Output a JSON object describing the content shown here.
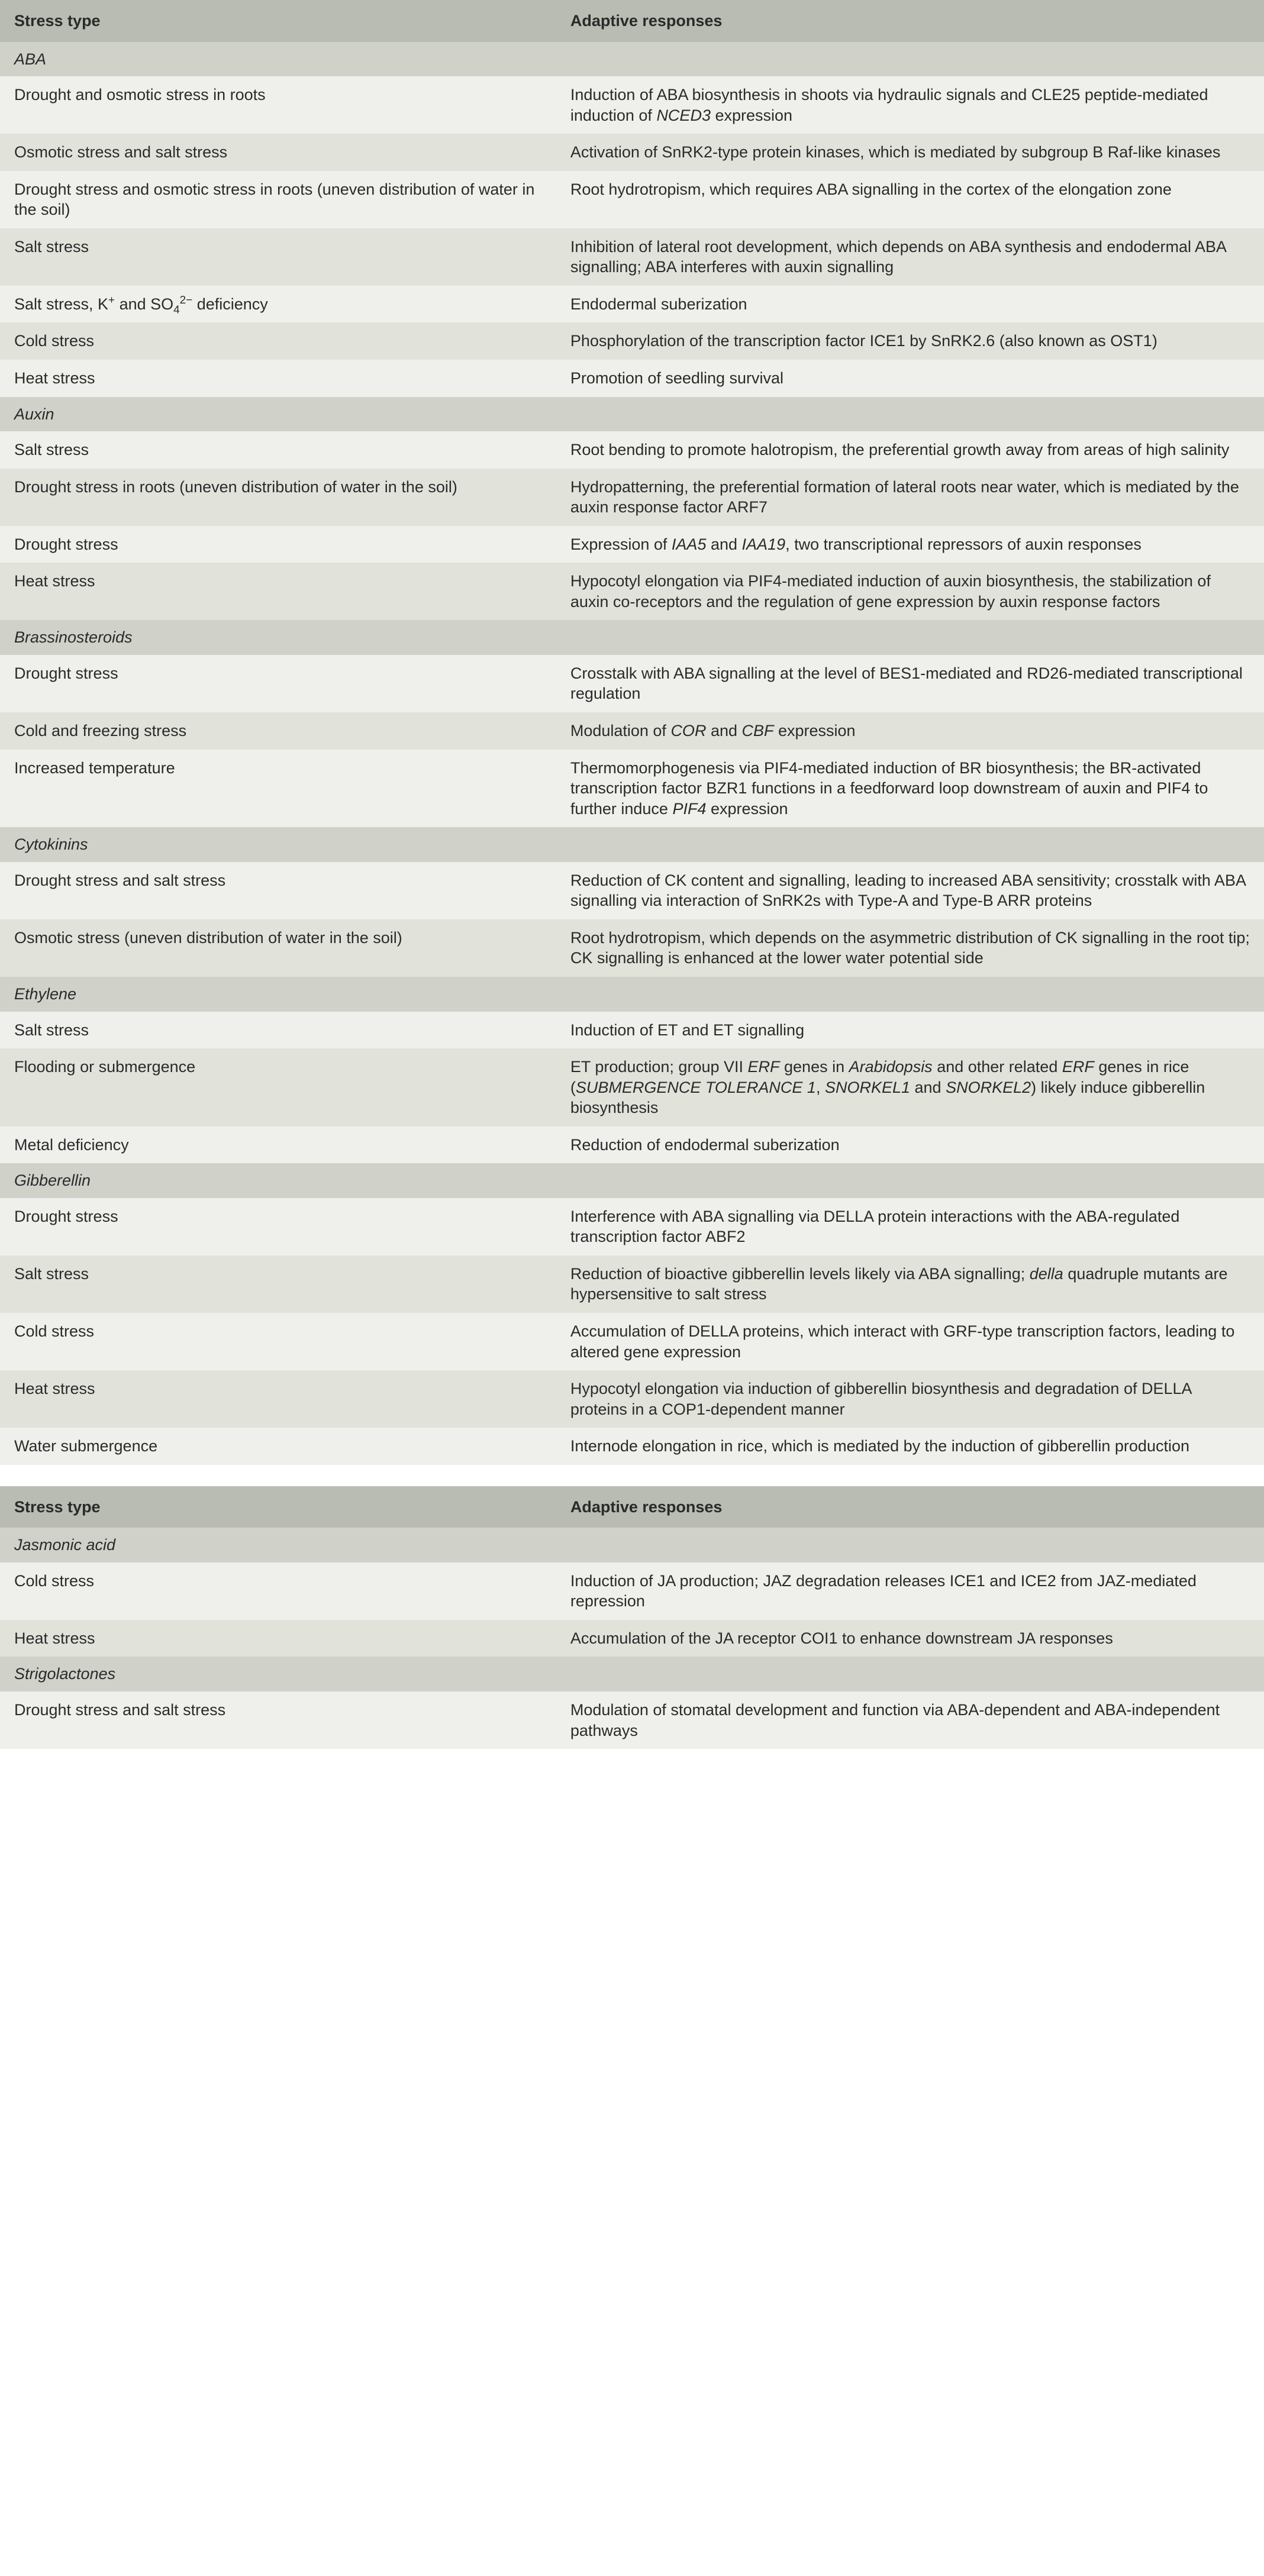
{
  "columns": {
    "stress": "Stress type",
    "response": "Adaptive responses"
  },
  "blocks": [
    {
      "header": true,
      "sections": [
        {
          "name": "ABA",
          "rows": [
            {
              "stress": "Drought and osmotic stress in roots",
              "response": "Induction of ABA biosynthesis in shoots via hydraulic signals and CLE25 peptide-mediated induction of <i class='g'>NCED3</i> expression"
            },
            {
              "stress": "Osmotic stress and salt stress",
              "response": "Activation of SnRK2-type protein kinases, which is mediated by subgroup B Raf-like kinases"
            },
            {
              "stress": "Drought stress and osmotic stress in roots (uneven distribution of water in the soil)",
              "response": "Root hydrotropism, which requires ABA signalling in the cortex of the elongation zone"
            },
            {
              "stress": "Salt stress",
              "response": "Inhibition of lateral root development, which depends on ABA synthesis and endodermal ABA signalling; ABA interferes with auxin signalling"
            },
            {
              "stress": "Salt stress, K<sup>+</sup> and SO<sub>4</sub><sup>2−</sup> deficiency",
              "response": "Endodermal suberization"
            },
            {
              "stress": "Cold stress",
              "response": "Phosphorylation of the transcription factor ICE1 by SnRK2.6 (also known as OST1)"
            },
            {
              "stress": "Heat stress",
              "response": "Promotion of seedling survival"
            }
          ]
        },
        {
          "name": "Auxin",
          "rows": [
            {
              "stress": "Salt stress",
              "response": "Root bending to promote halotropism, the preferential growth away from areas of high salinity"
            },
            {
              "stress": "Drought stress in roots (uneven distribution of water in the soil)",
              "response": "Hydropatterning, the preferential formation of lateral roots near water, which is mediated by the auxin response factor ARF7"
            },
            {
              "stress": "Drought stress",
              "response": "Expression of <i class='g'>IAA5</i> and <i class='g'>IAA19</i>, two transcriptional repressors of auxin responses"
            },
            {
              "stress": "Heat stress",
              "response": "Hypocotyl elongation via PIF4-mediated induction of auxin biosynthesis, the stabilization of auxin co-receptors and the regulation of gene expression by auxin response factors"
            }
          ]
        },
        {
          "name": "Brassinosteroids",
          "rows": [
            {
              "stress": "Drought stress",
              "response": "Crosstalk with ABA signalling at the level of BES1-mediated and RD26-mediated transcriptional regulation"
            },
            {
              "stress": "Cold and freezing stress",
              "response": "Modulation of <i class='g'>COR</i> and <i class='g'>CBF</i> expression"
            },
            {
              "stress": "Increased temperature",
              "response": "Thermomorphogenesis via PIF4-mediated induction of BR biosynthesis; the BR-activated transcription factor BZR1 functions in a feedforward loop downstream of auxin and PIF4 to further induce <i class='g'>PIF4</i> expression"
            }
          ]
        },
        {
          "name": "Cytokinins",
          "rows": [
            {
              "stress": "Drought stress and salt stress",
              "response": "Reduction of CK content and signalling, leading to increased ABA sensitivity; crosstalk with ABA signalling via interaction of SnRK2s with Type-A and Type-B ARR proteins"
            },
            {
              "stress": "Osmotic stress (uneven distribution of water in the soil)",
              "response": "Root hydrotropism, which depends on the asymmetric distribution of CK signalling in the root tip; CK signalling is enhanced at the lower water potential side"
            }
          ]
        },
        {
          "name": "Ethylene",
          "rows": [
            {
              "stress": "Salt stress",
              "response": "Induction of ET and ET signalling"
            },
            {
              "stress": "Flooding or submergence",
              "response": "ET production; group VII <i class='g'>ERF</i> genes in <i class='g'>Arabidopsis</i> and other related <i class='g'>ERF</i> genes in rice (<i class='g'>SUBMERGENCE TOLERANCE 1</i>, <i class='g'>SNORKEL1</i> and <i class='g'>SNORKEL2</i>) likely induce gibberellin biosynthesis"
            },
            {
              "stress": "Metal deficiency",
              "response": "Reduction of endodermal suberization"
            }
          ]
        },
        {
          "name": "Gibberellin",
          "rows": [
            {
              "stress": "Drought stress",
              "response": "Interference with ABA signalling via DELLA protein interactions with the ABA-regulated transcription factor ABF2"
            },
            {
              "stress": "Salt stress",
              "response": "Reduction of bioactive gibberellin levels likely via ABA signalling; <i class='g'>della</i> quadruple mutants are hypersensitive to salt stress"
            },
            {
              "stress": "Cold stress",
              "response": "Accumulation of DELLA proteins, which interact with GRF-type transcription factors, leading to altered gene expression"
            },
            {
              "stress": "Heat stress",
              "response": "Hypocotyl elongation via induction of gibberellin biosynthesis and degradation of DELLA proteins in a COP1-dependent manner"
            },
            {
              "stress": "Water submergence",
              "response": "Internode elongation in rice, which is mediated by the induction of gibberellin production"
            }
          ]
        }
      ]
    },
    {
      "header": true,
      "sections": [
        {
          "name": "Jasmonic acid",
          "rows": [
            {
              "stress": "Cold stress",
              "response": "Induction of JA production; JAZ degradation releases ICE1 and ICE2 from JAZ-mediated repression"
            },
            {
              "stress": "Heat stress",
              "response": "Accumulation of the JA receptor COI1 to enhance downstream JA responses"
            }
          ]
        },
        {
          "name": "Strigolactones",
          "rows": [
            {
              "stress": "Drought stress and salt stress",
              "response": "Modulation of stomatal development and function via ABA-dependent and ABA-independent pathways"
            }
          ]
        }
      ]
    }
  ]
}
